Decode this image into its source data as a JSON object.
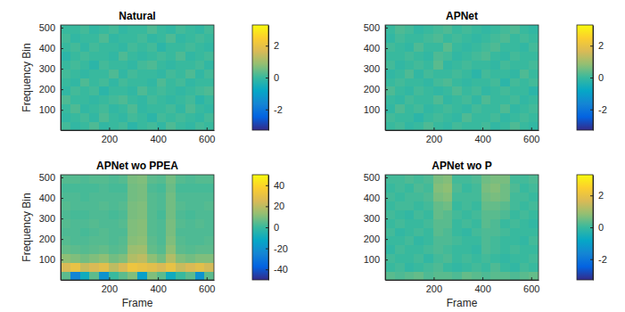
{
  "chart_data": [
    {
      "type": "heatmap",
      "title": "Natural",
      "ylabel": "Frequency Bin",
      "xlim": [
        1,
        630
      ],
      "ylim": [
        1,
        513
      ],
      "xticks": [
        200,
        400,
        600
      ],
      "yticks": [
        100,
        200,
        300,
        400,
        500
      ],
      "color_range": [
        -3.3,
        3.3
      ],
      "color_ticks": [
        -2,
        0,
        2
      ],
      "cells": [
        [
          0.1,
          -0.1,
          0.0,
          0.2,
          -0.1,
          0.0,
          0.1,
          -0.2,
          0.0,
          0.1,
          -0.1,
          0.2,
          0.0,
          -0.1,
          0.1,
          0.0
        ],
        [
          -0.1,
          0.0,
          0.1,
          -0.1,
          0.2,
          0.0,
          -0.1,
          0.1,
          0.0,
          -0.2,
          0.1,
          0.0,
          0.1,
          0.0,
          -0.1,
          0.1
        ],
        [
          0.0,
          0.2,
          -0.1,
          0.0,
          0.1,
          -0.1,
          0.0,
          0.2,
          -0.1,
          0.0,
          0.0,
          0.1,
          -0.1,
          0.2,
          0.0,
          -0.1
        ],
        [
          0.2,
          0.0,
          0.0,
          -0.1,
          0.0,
          0.1,
          0.2,
          0.0,
          -0.1,
          0.1,
          0.0,
          -0.1,
          0.0,
          0.1,
          -0.2,
          0.0
        ],
        [
          -0.1,
          0.1,
          0.0,
          0.1,
          -0.2,
          0.0,
          0.0,
          -0.1,
          0.2,
          0.0,
          0.1,
          0.0,
          -0.1,
          0.0,
          0.1,
          0.2
        ],
        [
          0.0,
          -0.1,
          0.2,
          0.0,
          0.1,
          -0.1,
          0.1,
          0.0,
          0.0,
          -0.1,
          0.2,
          0.0,
          0.1,
          -0.1,
          0.0,
          0.0
        ],
        [
          0.1,
          0.0,
          -0.1,
          0.0,
          0.0,
          0.2,
          -0.1,
          0.1,
          0.0,
          0.0,
          -0.1,
          0.1,
          0.0,
          0.2,
          -0.1,
          0.1
        ],
        [
          0.0,
          0.1,
          0.0,
          -0.2,
          0.1,
          0.0,
          0.0,
          -0.1,
          0.1,
          0.2,
          0.0,
          -0.1,
          0.0,
          0.0,
          0.1,
          -0.1
        ],
        [
          -0.2,
          0.0,
          0.1,
          0.0,
          0.0,
          -0.1,
          0.2,
          0.0,
          -0.1,
          0.0,
          0.1,
          0.0,
          0.2,
          -0.1,
          0.0,
          0.1
        ],
        [
          0.0,
          0.1,
          -0.1,
          0.1,
          0.0,
          0.0,
          -0.1,
          0.1,
          0.0,
          0.1,
          -0.2,
          0.0,
          0.0,
          0.1,
          0.0,
          -0.1
        ],
        [
          0.1,
          -0.1,
          0.0,
          0.0,
          0.2,
          -0.1,
          0.0,
          0.0,
          0.1,
          -0.1,
          0.0,
          0.2,
          -0.1,
          0.0,
          0.1,
          0.0
        ],
        [
          0.0,
          0.0,
          0.1,
          -0.1,
          0.0,
          0.1,
          -0.1,
          0.0,
          0.0,
          0.2,
          0.0,
          -0.1,
          0.1,
          0.0,
          -0.1,
          0.1
        ]
      ]
    },
    {
      "type": "heatmap",
      "title": "APNet",
      "xlim": [
        1,
        630
      ],
      "ylim": [
        1,
        513
      ],
      "xticks": [
        200,
        400,
        600
      ],
      "yticks": [
        100,
        200,
        300,
        400,
        500
      ],
      "color_range": [
        -3.3,
        3.3
      ],
      "color_ticks": [
        -2,
        0,
        2
      ],
      "cells": [
        [
          0.0,
          0.1,
          -0.1,
          0.0,
          0.2,
          0.0,
          -0.1,
          0.1,
          0.0,
          0.0,
          0.1,
          -0.1,
          0.0,
          0.2,
          0.0,
          -0.1
        ],
        [
          0.1,
          0.0,
          0.0,
          -0.2,
          0.0,
          0.1,
          0.0,
          -0.1,
          0.2,
          0.0,
          0.0,
          0.1,
          -0.1,
          0.0,
          0.1,
          0.0
        ],
        [
          -0.1,
          0.2,
          0.0,
          0.1,
          -0.1,
          0.0,
          0.1,
          0.0,
          -0.1,
          0.1,
          0.0,
          0.0,
          0.2,
          -0.1,
          0.0,
          0.1
        ],
        [
          0.0,
          -0.1,
          0.1,
          0.0,
          0.0,
          0.2,
          -0.1,
          0.0,
          0.1,
          -0.1,
          0.2,
          0.0,
          0.0,
          0.1,
          -0.1,
          0.0
        ],
        [
          0.2,
          0.0,
          -0.1,
          0.1,
          0.0,
          -0.1,
          0.0,
          0.2,
          0.0,
          0.1,
          -0.1,
          0.0,
          0.1,
          0.0,
          0.0,
          -0.2
        ],
        [
          0.0,
          0.1,
          0.0,
          0.0,
          -0.1,
          0.1,
          0.2,
          0.0,
          -0.1,
          0.0,
          0.0,
          0.1,
          -0.2,
          0.1,
          0.0,
          0.1
        ],
        [
          -0.1,
          0.0,
          0.2,
          -0.1,
          0.1,
          0.0,
          0.0,
          0.1,
          0.0,
          -0.2,
          0.1,
          0.0,
          0.0,
          -0.1,
          0.2,
          0.0
        ],
        [
          0.1,
          -0.1,
          0.0,
          0.1,
          0.0,
          0.3,
          -0.1,
          0.0,
          0.1,
          0.0,
          0.0,
          -0.1,
          0.1,
          0.0,
          0.0,
          0.1
        ],
        [
          0.0,
          0.0,
          0.1,
          0.0,
          -0.1,
          0.2,
          0.1,
          -0.1,
          0.0,
          0.1,
          0.2,
          0.0,
          -0.1,
          0.1,
          0.0,
          0.0
        ],
        [
          0.1,
          0.0,
          -0.1,
          0.2,
          0.0,
          0.0,
          0.3,
          0.0,
          -0.1,
          0.0,
          0.1,
          0.2,
          0.0,
          0.0,
          -0.1,
          0.1
        ],
        [
          -0.1,
          0.1,
          0.0,
          0.0,
          0.1,
          0.2,
          0.0,
          0.1,
          0.0,
          -0.1,
          0.0,
          0.1,
          0.2,
          0.0,
          0.1,
          0.0
        ],
        [
          0.0,
          0.2,
          0.1,
          -0.1,
          0.0,
          0.1,
          0.2,
          0.0,
          0.1,
          0.0,
          -0.1,
          0.0,
          0.1,
          0.2,
          0.0,
          -0.1
        ]
      ]
    },
    {
      "type": "heatmap",
      "title": "APNet wo PPEA",
      "xlabel": "Frame",
      "ylabel": "Frequency Bin",
      "xlim": [
        1,
        630
      ],
      "ylim": [
        1,
        513
      ],
      "xticks": [
        200,
        400,
        600
      ],
      "yticks": [
        100,
        200,
        300,
        400,
        500
      ],
      "color_range": [
        -50,
        50
      ],
      "color_ticks": [
        -40,
        -20,
        0,
        20,
        40
      ],
      "cells": [
        [
          5,
          -25,
          -10,
          5,
          -20,
          0,
          5,
          10,
          -15,
          10,
          5,
          -10,
          0,
          5,
          -20,
          5
        ],
        [
          25,
          30,
          22,
          25,
          28,
          20,
          25,
          32,
          30,
          28,
          25,
          30,
          22,
          25,
          28,
          24
        ],
        [
          12,
          10,
          8,
          10,
          12,
          8,
          10,
          18,
          20,
          12,
          8,
          18,
          10,
          8,
          10,
          10
        ],
        [
          6,
          5,
          4,
          5,
          6,
          4,
          5,
          14,
          15,
          6,
          4,
          12,
          5,
          4,
          5,
          5
        ],
        [
          4,
          3,
          3,
          4,
          4,
          3,
          4,
          11,
          12,
          5,
          3,
          10,
          4,
          3,
          3,
          4
        ],
        [
          3,
          3,
          2,
          3,
          4,
          3,
          3,
          10,
          11,
          4,
          3,
          9,
          3,
          3,
          3,
          3
        ],
        [
          4,
          3,
          3,
          4,
          3,
          3,
          4,
          10,
          11,
          4,
          3,
          9,
          4,
          3,
          4,
          3
        ],
        [
          3,
          2,
          2,
          3,
          3,
          2,
          3,
          9,
          10,
          4,
          2,
          8,
          3,
          2,
          3,
          3
        ],
        [
          4,
          3,
          3,
          3,
          4,
          3,
          4,
          9,
          10,
          4,
          3,
          8,
          4,
          3,
          3,
          4
        ],
        [
          3,
          3,
          2,
          3,
          3,
          3,
          3,
          8,
          9,
          4,
          3,
          8,
          3,
          3,
          3,
          3
        ],
        [
          2,
          2,
          2,
          2,
          3,
          2,
          2,
          8,
          9,
          3,
          2,
          7,
          2,
          2,
          2,
          2
        ],
        [
          4,
          4,
          3,
          4,
          4,
          3,
          4,
          9,
          10,
          5,
          4,
          8,
          4,
          3,
          4,
          4
        ]
      ]
    },
    {
      "type": "heatmap",
      "title": "APNet wo P",
      "xlabel": "Frame",
      "xlim": [
        1,
        630
      ],
      "ylim": [
        1,
        513
      ],
      "xticks": [
        200,
        400,
        600
      ],
      "yticks": [
        100,
        200,
        300,
        400,
        500
      ],
      "color_range": [
        -3.3,
        3.3
      ],
      "color_ticks": [
        -2,
        0,
        2
      ],
      "cells": [
        [
          0.3,
          0.2,
          0.3,
          0.4,
          0.2,
          0.3,
          0.3,
          0.2,
          0.4,
          0.3,
          0.2,
          0.3,
          0.3,
          0.2,
          0.3,
          0.4
        ],
        [
          0.0,
          0.1,
          -0.1,
          0.0,
          0.1,
          0.2,
          0.0,
          -0.1,
          0.0,
          0.1,
          0.0,
          0.2,
          0.0,
          -0.1,
          0.1,
          0.0
        ],
        [
          0.1,
          0.0,
          0.0,
          0.1,
          -0.1,
          0.1,
          0.2,
          0.0,
          0.1,
          0.0,
          0.1,
          0.0,
          -0.1,
          0.0,
          0.0,
          0.1
        ],
        [
          -0.1,
          0.1,
          0.0,
          0.0,
          0.1,
          0.2,
          0.1,
          0.0,
          0.0,
          -0.1,
          0.2,
          0.1,
          0.0,
          0.1,
          0.0,
          0.0
        ],
        [
          0.0,
          0.0,
          0.1,
          -0.1,
          0.0,
          0.2,
          0.2,
          0.1,
          0.0,
          0.0,
          0.2,
          0.1,
          0.0,
          0.0,
          -0.1,
          0.1
        ],
        [
          0.1,
          -0.1,
          0.0,
          0.1,
          0.0,
          0.3,
          0.2,
          0.0,
          -0.1,
          0.1,
          0.2,
          0.2,
          0.1,
          0.0,
          0.0,
          0.0
        ],
        [
          0.0,
          0.1,
          0.0,
          0.0,
          0.1,
          0.3,
          0.3,
          0.0,
          0.1,
          0.0,
          0.3,
          0.2,
          0.0,
          0.1,
          0.0,
          -0.1
        ],
        [
          0.1,
          0.0,
          -0.1,
          0.1,
          0.0,
          0.4,
          0.3,
          0.1,
          0.0,
          0.1,
          0.3,
          0.3,
          0.2,
          0.0,
          0.1,
          0.0
        ],
        [
          0.0,
          0.1,
          0.1,
          0.0,
          0.1,
          0.4,
          0.5,
          0.0,
          0.1,
          0.0,
          0.4,
          0.4,
          0.3,
          0.1,
          0.0,
          0.1
        ],
        [
          0.1,
          0.0,
          0.1,
          0.1,
          0.2,
          0.6,
          0.7,
          0.1,
          0.1,
          0.1,
          0.5,
          0.6,
          0.5,
          0.1,
          0.1,
          0.0
        ],
        [
          0.0,
          0.1,
          0.0,
          0.2,
          0.1,
          0.7,
          0.8,
          0.2,
          0.0,
          0.1,
          0.6,
          0.7,
          0.5,
          0.2,
          0.0,
          0.1
        ],
        [
          0.1,
          0.1,
          0.2,
          0.1,
          0.2,
          0.6,
          0.7,
          0.1,
          0.1,
          0.2,
          0.5,
          0.6,
          0.6,
          0.1,
          0.1,
          0.2
        ]
      ]
    }
  ]
}
